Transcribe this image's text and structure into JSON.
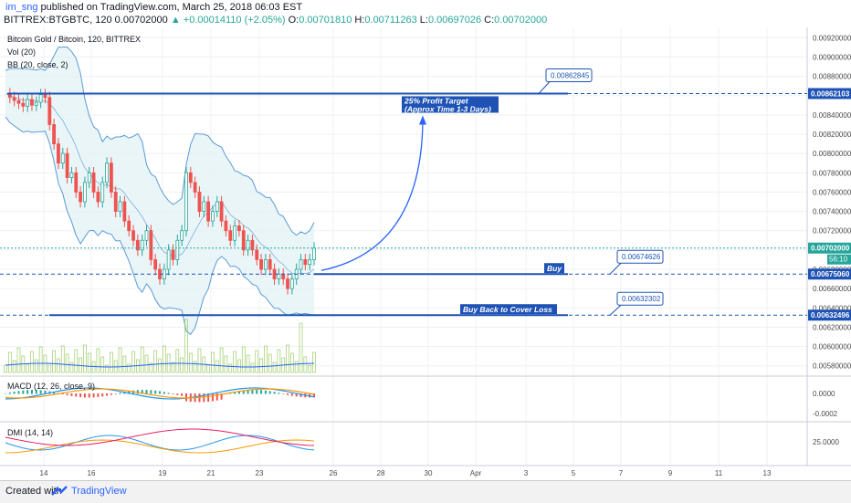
{
  "header": {
    "user": "im_sng",
    "published": "published on TradingView.com, March 25, 2018 06:03 EST",
    "symbol_line": "BITTREX:BTGBTC, 120",
    "price": "0.00702000",
    "change": "+0.00014110 (+2.05%)",
    "o_label": "O:",
    "o": "0.00701810",
    "h_label": "H:",
    "h": "0.00711263",
    "l_label": "L:",
    "l": "0.00697026",
    "c_label": "C:",
    "c": "0.00702000"
  },
  "legend": {
    "title": "Bitcoin Gold / Bitcoin, 120, BITTREX",
    "vol": "Vol (20)",
    "bb": "BB (20, close, 2)",
    "macd": "MACD (12, 26, close, 9)",
    "dmi": "DMI (14, 14)"
  },
  "footer": {
    "created": "Created with",
    "brand": "TradingView"
  },
  "colors": {
    "up": "#26a69a",
    "down": "#ef5350",
    "line": "#1e53b5",
    "bb": "#5b9bd5",
    "bbfill": "#e3f2f5",
    "macd": "#2196f3",
    "signal": "#ff9800",
    "dmi_plus": "#2196f3",
    "dmi_minus": "#ff9800",
    "adx": "#e91e63",
    "label_bg": "#ffffff",
    "label_border": "#1e53b5"
  },
  "chart_data": {
    "type": "candlestick",
    "x_ticks": [
      "14",
      "16",
      "19",
      "21",
      "23",
      "26",
      "28",
      "30",
      "Apr",
      "3",
      "5",
      "7",
      "9",
      "11",
      "13"
    ],
    "y_ticks": [
      "0.00920000",
      "0.00900000",
      "0.00880000",
      "0.00860000",
      "0.00840000",
      "0.00820000",
      "0.00800000",
      "0.00780000",
      "0.00760000",
      "0.00740000",
      "0.00720000",
      "0.00700000",
      "0.00680000",
      "0.00660000",
      "0.00640000",
      "0.00620000",
      "0.00600000",
      "0.00580000"
    ],
    "y_range": [
      0.00575,
      0.00925
    ],
    "macd_ticks": [
      "0.0000",
      "-0.0002"
    ],
    "dmi_ticks": [
      "25.0000"
    ],
    "close_series": [
      0.00862,
      0.00858,
      0.00855,
      0.00852,
      0.00849,
      0.00856,
      0.0085,
      0.00853,
      0.00861,
      0.00858,
      0.0083,
      0.0081,
      0.0079,
      0.008,
      0.00775,
      0.0078,
      0.0076,
      0.0075,
      0.0077,
      0.0078,
      0.0076,
      0.0075,
      0.0077,
      0.0079,
      0.0076,
      0.0074,
      0.0075,
      0.0073,
      0.0072,
      0.0071,
      0.007,
      0.0071,
      0.0072,
      0.0069,
      0.0068,
      0.0067,
      0.0068,
      0.007,
      0.0069,
      0.0071,
      0.0072,
      0.0078,
      0.0077,
      0.0076,
      0.0074,
      0.0075,
      0.0073,
      0.0074,
      0.0075,
      0.0073,
      0.0072,
      0.0071,
      0.00725,
      0.0072,
      0.007,
      0.0071,
      0.007,
      0.0069,
      0.0068,
      0.0069,
      0.0068,
      0.0067,
      0.00675,
      0.0067,
      0.0066,
      0.0067,
      0.0068,
      0.0069,
      0.00685,
      0.0069,
      0.00702
    ],
    "annotations": [
      {
        "text": "25% Profit Target",
        "kind": "title"
      },
      {
        "text": "(Approx Time 1-3 Days)",
        "kind": "title"
      },
      {
        "text": "Buy",
        "kind": "title"
      },
      {
        "text": "Buy  Back to Cover Loss",
        "kind": "title"
      },
      {
        "text": "0.00862845",
        "kind": "callout"
      },
      {
        "text": "0.00674626",
        "kind": "callout"
      },
      {
        "text": "0.00632302",
        "kind": "callout"
      }
    ],
    "levels": [
      {
        "price": 0.008621,
        "label": "0.00862103"
      },
      {
        "price": 0.0067506,
        "label": "0.00675060"
      },
      {
        "price": 0.006325,
        "label": "0.00632496"
      }
    ],
    "current_price": {
      "price": 0.00702,
      "label": "0.00702000",
      "time_left": "56:10"
    },
    "grid": true
  }
}
